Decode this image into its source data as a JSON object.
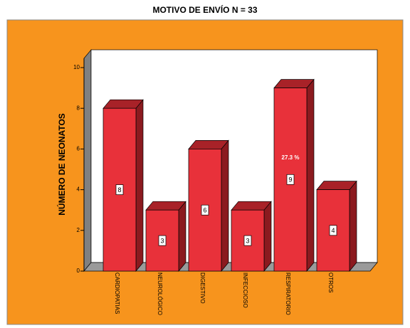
{
  "chart_data": {
    "type": "bar3d",
    "title": "MOTIVO  DE  ENVÍO    N = 33",
    "y_label": "NÚMERO  DE  NEONATOS",
    "categories": [
      "CARDIOPATIAS",
      "NEUROLÓGICO",
      "DIGESTIVO",
      "INFECCIOSO",
      "RESPIRATORIO",
      "OTROS"
    ],
    "values": [
      8,
      3,
      6,
      3,
      9,
      4
    ],
    "color": "#e8313a",
    "annotation": "27.3 %",
    "ylim": [
      0,
      10
    ],
    "yticks": [
      0,
      2,
      4,
      6,
      8,
      10
    ]
  }
}
